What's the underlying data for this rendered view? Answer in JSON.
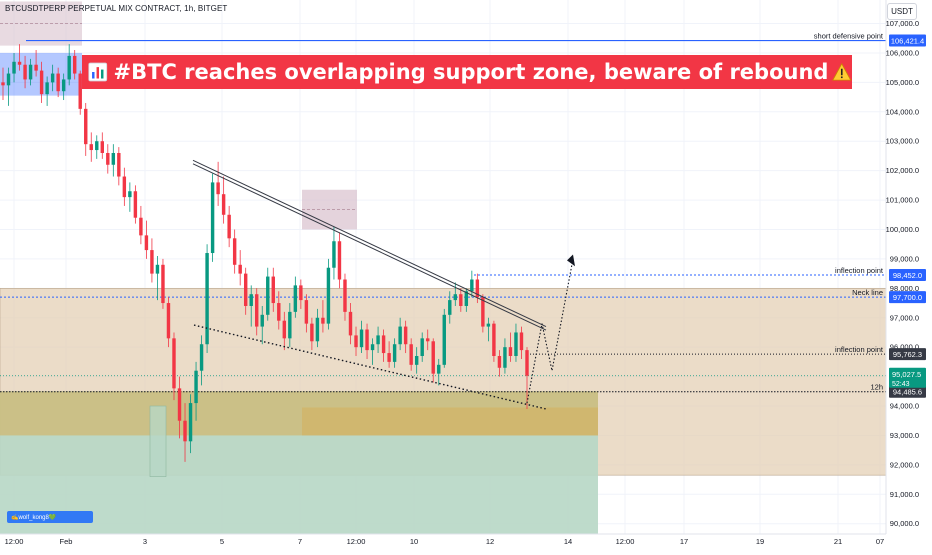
{
  "header": {
    "symbol": "BTCUSDTPERP PERPETUAL MIX CONTRACT, 1h, BITGET",
    "currency_button": "USDT"
  },
  "headline": {
    "text": "#BTC reaches overlapping support zone, beware of rebound",
    "icon": "bar-chart-icon",
    "trailing_icon": "warning-icon",
    "background": "#f23645"
  },
  "watermark": {
    "text": "✍wolf_kong8💚"
  },
  "colors": {
    "up_candle": "#089981",
    "down_candle": "#f23645",
    "blue_line": "#2962ff",
    "neutral_zone": "#e2cdb1",
    "support_zone": "#d2b465",
    "green_zone": "#b7d7c5",
    "purple_zone": "#d9c1cd",
    "label_dark": "#363a45"
  },
  "chart_data": {
    "type": "candlestick",
    "title": "",
    "xlabel": "",
    "ylabel": "",
    "ylim": [
      89650,
      107800
    ],
    "grid": true,
    "y_ticks": [
      "107,000.0",
      "106,000.0",
      "105,000.0",
      "104,000.0",
      "103,000.0",
      "102,000.0",
      "101,000.0",
      "100,000.0",
      "99,000.0",
      "98,000.0",
      "97,000.0",
      "96,000.0",
      "95,000.0",
      "94,000.0",
      "93,000.0",
      "92,000.0",
      "91,000.0",
      "90,000.0"
    ],
    "x_ticks": [
      "12:00",
      "Feb",
      "3",
      "5",
      "7",
      "12:00",
      "10",
      "12",
      "14",
      "12:00",
      "17",
      "19",
      "21",
      "07"
    ],
    "price_labels": [
      {
        "name": "short defensive point",
        "value": "106,421.4",
        "price": 106421.4,
        "style": "blue"
      },
      {
        "name": "inflection point",
        "value": "98,452.0",
        "price": 98452.0,
        "style": "blue"
      },
      {
        "name": "Neck line",
        "value": "97,700.0",
        "price": 97700.0,
        "style": "blue"
      },
      {
        "name": "inflection point",
        "value": "95,762.3",
        "price": 95762.3,
        "style": "dark"
      },
      {
        "name": "12h",
        "value": "94,485.6",
        "price": 94485.6,
        "style": "dark"
      }
    ],
    "current_price": {
      "value": "95,027.5",
      "countdown": "52:43",
      "price": 95027.5
    },
    "zones": [
      {
        "name": "neutral-range-zone",
        "color": "neutral_zone",
        "price_top": 98000,
        "price_bottom": 91650,
        "span": "full"
      },
      {
        "name": "upper-blue-zone",
        "color": "blue_line",
        "price_top": 106000,
        "price_bottom": 104550,
        "span": "left"
      },
      {
        "name": "upper-purple-zone",
        "color": "purple_zone",
        "price_top": 107750,
        "price_bottom": 106250,
        "span": "left"
      },
      {
        "name": "support-zone",
        "color": "support_zone",
        "price_top": 94500,
        "price_bottom": 93000,
        "span": "mid"
      },
      {
        "name": "inner-support-zone",
        "color": "support_zone",
        "price_top": 93950,
        "price_bottom": 93000,
        "span": "right"
      },
      {
        "name": "mid-purple-zone",
        "color": "purple_zone",
        "price_top": 101350,
        "price_bottom": 100000,
        "span": "peak"
      },
      {
        "name": "green-demand-zone",
        "color": "green_zone",
        "price_top": 94500,
        "price_bottom": 89650,
        "span": "left-half"
      }
    ],
    "candles": [
      [
        105000,
        105500,
        104400,
        104900
      ],
      [
        104900,
        105500,
        104200,
        105300
      ],
      [
        105300,
        106000,
        105000,
        105700
      ],
      [
        105700,
        106300,
        105400,
        105600
      ],
      [
        105600,
        105900,
        104800,
        105100
      ],
      [
        105100,
        105800,
        104900,
        105600
      ],
      [
        105600,
        106100,
        105200,
        105400
      ],
      [
        105400,
        105700,
        104300,
        104600
      ],
      [
        104600,
        105200,
        104200,
        105000
      ],
      [
        105000,
        105600,
        104700,
        105300
      ],
      [
        105300,
        105500,
        104500,
        104700
      ],
      [
        104700,
        105300,
        104400,
        105100
      ],
      [
        105100,
        106300,
        104900,
        105900
      ],
      [
        105900,
        106100,
        105100,
        105300
      ],
      [
        105300,
        105400,
        103900,
        104100
      ],
      [
        104100,
        104300,
        102500,
        102900
      ],
      [
        102900,
        103300,
        102300,
        102700
      ],
      [
        102700,
        103200,
        102400,
        103000
      ],
      [
        103000,
        103300,
        102400,
        102600
      ],
      [
        102600,
        102900,
        101900,
        102200
      ],
      [
        102200,
        102900,
        101800,
        102600
      ],
      [
        102600,
        102800,
        101500,
        101800
      ],
      [
        101800,
        102100,
        100800,
        101100
      ],
      [
        101100,
        101600,
        100600,
        101300
      ],
      [
        101300,
        101500,
        100200,
        100400
      ],
      [
        100400,
        100800,
        99500,
        99800
      ],
      [
        99800,
        100300,
        99000,
        99300
      ],
      [
        99300,
        99700,
        98200,
        98500
      ],
      [
        98500,
        99100,
        97600,
        98800
      ],
      [
        98800,
        99000,
        97300,
        97500
      ],
      [
        97500,
        97700,
        96000,
        96300
      ],
      [
        96300,
        96500,
        94200,
        94600
      ],
      [
        94600,
        95000,
        92900,
        93500
      ],
      [
        93500,
        94100,
        92100,
        92800
      ],
      [
        92800,
        94400,
        92400,
        94100
      ],
      [
        94100,
        95500,
        93500,
        95200
      ],
      [
        95200,
        96400,
        94700,
        96100
      ],
      [
        96100,
        99500,
        95800,
        99200
      ],
      [
        99200,
        101900,
        98900,
        101600
      ],
      [
        101600,
        102300,
        100800,
        101200
      ],
      [
        101200,
        101800,
        100200,
        100500
      ],
      [
        100500,
        100800,
        99400,
        99700
      ],
      [
        99700,
        100000,
        98500,
        98800
      ],
      [
        98800,
        99300,
        98100,
        98500
      ],
      [
        98500,
        98700,
        97100,
        97400
      ],
      [
        97400,
        98100,
        96700,
        97800
      ],
      [
        97800,
        98000,
        96400,
        96700
      ],
      [
        96700,
        97400,
        96100,
        97100
      ],
      [
        97100,
        98700,
        96900,
        98400
      ],
      [
        98400,
        98700,
        97200,
        97500
      ],
      [
        97500,
        97900,
        96600,
        96900
      ],
      [
        96900,
        97200,
        95900,
        96300
      ],
      [
        96300,
        97500,
        96000,
        97200
      ],
      [
        97200,
        98400,
        97000,
        98100
      ],
      [
        98100,
        98300,
        97300,
        97600
      ],
      [
        97600,
        97800,
        96500,
        96800
      ],
      [
        96800,
        97000,
        95900,
        96200
      ],
      [
        96200,
        97300,
        96000,
        97000
      ],
      [
        97000,
        97600,
        96500,
        96800
      ],
      [
        96800,
        99000,
        96600,
        98700
      ],
      [
        98700,
        100100,
        98300,
        99600
      ],
      [
        99600,
        99900,
        98000,
        98300
      ],
      [
        98300,
        98500,
        96900,
        97200
      ],
      [
        97200,
        97500,
        96100,
        96400
      ],
      [
        96400,
        96700,
        95700,
        96000
      ],
      [
        96000,
        96900,
        95800,
        96600
      ],
      [
        96600,
        96800,
        95600,
        95900
      ],
      [
        95900,
        96300,
        95400,
        96100
      ],
      [
        96100,
        96700,
        95800,
        96400
      ],
      [
        96400,
        96600,
        95500,
        95800
      ],
      [
        95800,
        96200,
        95300,
        95500
      ],
      [
        95500,
        96300,
        95300,
        96100
      ],
      [
        96100,
        97000,
        95900,
        96700
      ],
      [
        96700,
        96900,
        95800,
        96100
      ],
      [
        96100,
        96300,
        95200,
        95400
      ],
      [
        95400,
        96000,
        95100,
        95700
      ],
      [
        95700,
        96500,
        95500,
        96300
      ],
      [
        96300,
        96600,
        95900,
        96200
      ],
      [
        96200,
        96300,
        94800,
        95100
      ],
      [
        95100,
        95600,
        94700,
        95400
      ],
      [
        95400,
        97300,
        95300,
        97100
      ],
      [
        97100,
        97900,
        96800,
        97600
      ],
      [
        97600,
        98200,
        97400,
        97800
      ],
      [
        97800,
        98000,
        97200,
        97400
      ],
      [
        97400,
        98000,
        97200,
        97900
      ],
      [
        97900,
        98600,
        97700,
        98300
      ],
      [
        98300,
        98500,
        97500,
        97700
      ],
      [
        97700,
        97800,
        96500,
        96700
      ],
      [
        96700,
        97000,
        96200,
        96800
      ],
      [
        96800,
        96900,
        95500,
        95700
      ],
      [
        95700,
        95900,
        95000,
        95300
      ],
      [
        95300,
        96300,
        95100,
        96000
      ],
      [
        96000,
        96500,
        95500,
        95700
      ],
      [
        95700,
        96800,
        95500,
        96500
      ],
      [
        96500,
        96700,
        95600,
        95900
      ],
      [
        95900,
        96000,
        93900,
        95027.5
      ]
    ],
    "annotations": [
      "descending-resistance-line",
      "descending-support-dotted-line",
      "projected-path-dotted-line"
    ]
  }
}
